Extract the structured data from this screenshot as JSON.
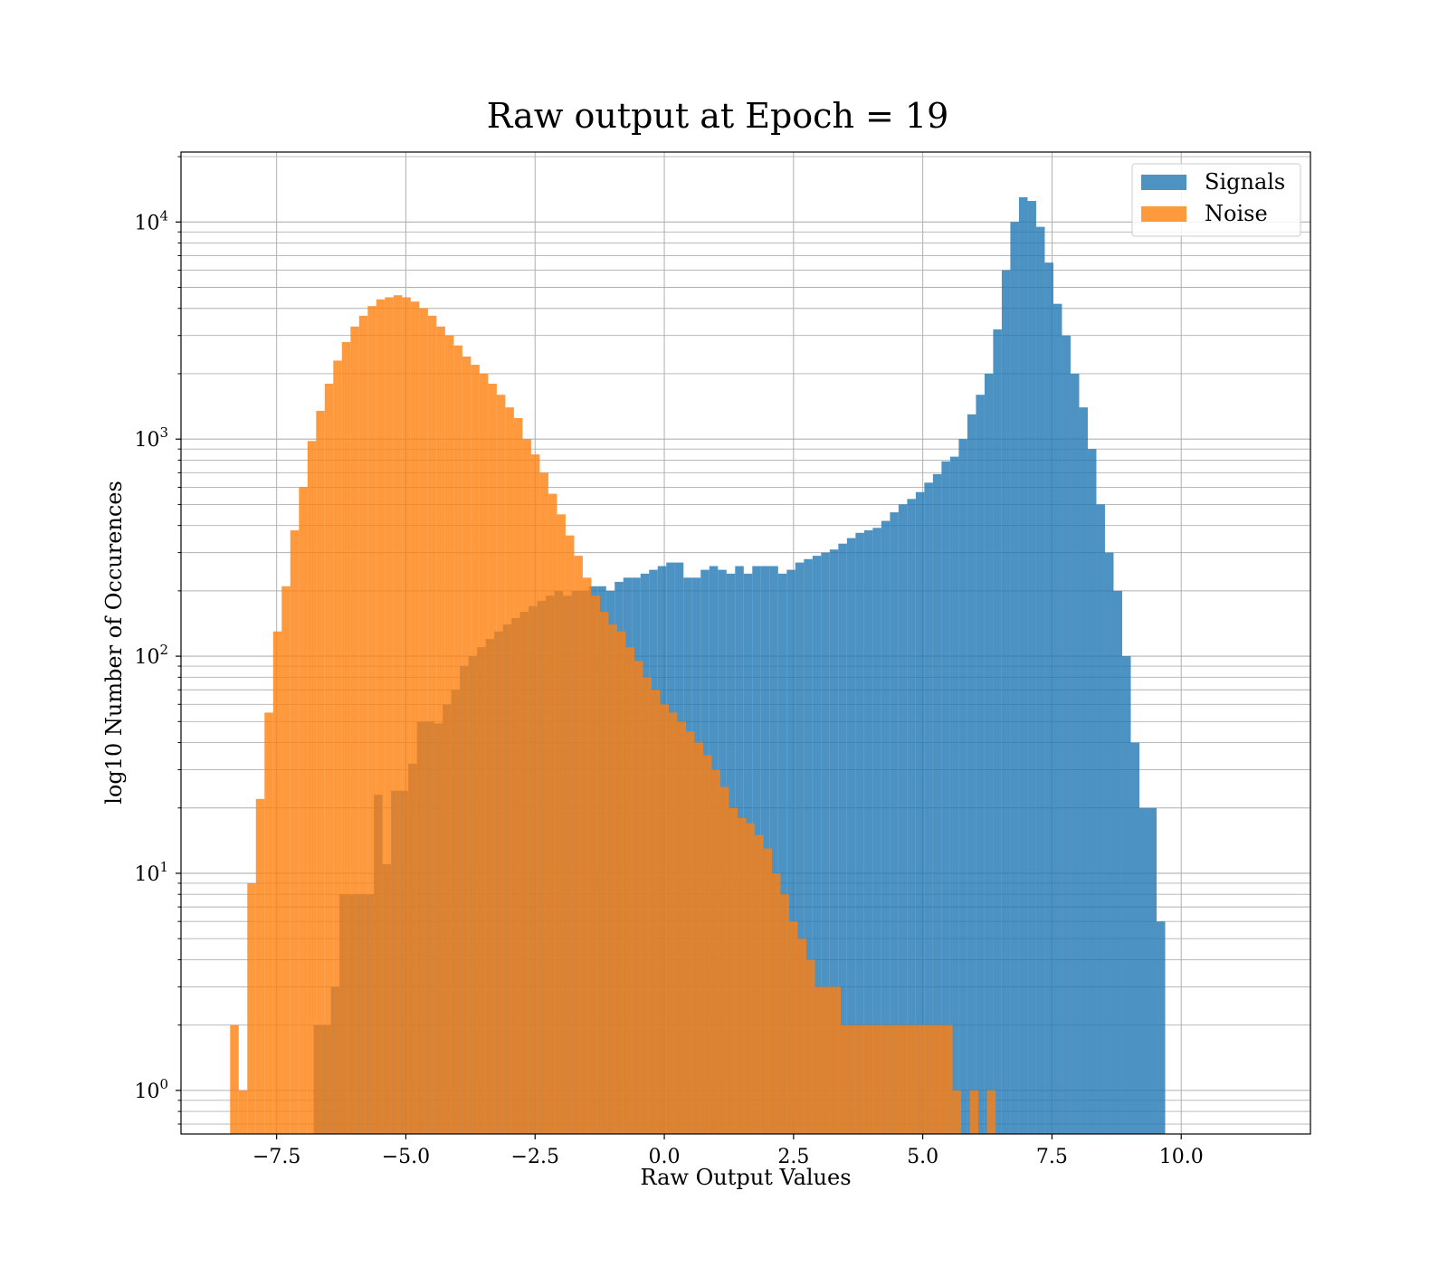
{
  "chart_data": {
    "type": "histogram",
    "title": "Raw output at Epoch = 19",
    "xlabel": "Raw Output Values",
    "ylabel": "log10 Number of Occurences",
    "yscale": "log",
    "xlim": [
      -9.35,
      12.5
    ],
    "ylim": [
      0.63,
      21000
    ],
    "grid": true,
    "legend_position": "top-right",
    "xticks": [
      -7.5,
      -5.0,
      -2.5,
      0.0,
      2.5,
      5.0,
      7.5,
      10.0
    ],
    "xtick_labels": [
      "−7.5",
      "−5.0",
      "−2.5",
      "0.0",
      "2.5",
      "5.0",
      "7.5",
      "10.0"
    ],
    "yticks": [
      {
        "value": 1,
        "base": "10",
        "exp": "0"
      },
      {
        "value": 10,
        "base": "10",
        "exp": "1"
      },
      {
        "value": 100,
        "base": "10",
        "exp": "2"
      },
      {
        "value": 1000,
        "base": "10",
        "exp": "3"
      },
      {
        "value": 10000,
        "base": "10",
        "exp": "4"
      }
    ],
    "bin_width": 0.1664,
    "series": [
      {
        "name": "Signals",
        "color": "#1f77b4",
        "opacity": 0.8,
        "start": -6.95,
        "counts": [
          0,
          2,
          2,
          3,
          8,
          8,
          8,
          8,
          23,
          11,
          24,
          24,
          32,
          50,
          50,
          49,
          60,
          70,
          90,
          100,
          110,
          120,
          130,
          140,
          150,
          160,
          170,
          180,
          190,
          200,
          190,
          200,
          200,
          210,
          210,
          200,
          220,
          230,
          230,
          240,
          250,
          260,
          270,
          270,
          230,
          230,
          250,
          260,
          250,
          240,
          260,
          240,
          260,
          260,
          260,
          240,
          250,
          270,
          280,
          290,
          300,
          310,
          330,
          350,
          370,
          380,
          390,
          420,
          460,
          500,
          530,
          570,
          630,
          690,
          790,
          830,
          1000,
          1300,
          1600,
          2000,
          3200,
          6000,
          10000,
          13000,
          12500,
          9500,
          6500,
          4200,
          3000,
          2000,
          1400,
          900,
          500,
          300,
          200,
          100,
          40,
          20,
          20,
          6
        ]
      },
      {
        "name": "Noise",
        "color": "#ff7f0e",
        "opacity": 0.8,
        "start": -8.4,
        "counts": [
          2,
          1,
          9,
          22,
          55,
          130,
          210,
          380,
          600,
          980,
          1350,
          1800,
          2300,
          2800,
          3300,
          3700,
          4100,
          4400,
          4500,
          4600,
          4500,
          4300,
          4000,
          3700,
          3300,
          3000,
          2700,
          2400,
          2200,
          2000,
          1800,
          1600,
          1400,
          1250,
          1000,
          850,
          700,
          560,
          450,
          360,
          290,
          230,
          190,
          160,
          140,
          130,
          110,
          95,
          80,
          70,
          60,
          55,
          50,
          45,
          40,
          35,
          30,
          25,
          20,
          18,
          17,
          15,
          13,
          10,
          8,
          6,
          5,
          4,
          3,
          3,
          3,
          2,
          2,
          2,
          2,
          2,
          2,
          2,
          2,
          2,
          2,
          2,
          2,
          2,
          1,
          0,
          1,
          0,
          1
        ]
      }
    ]
  }
}
